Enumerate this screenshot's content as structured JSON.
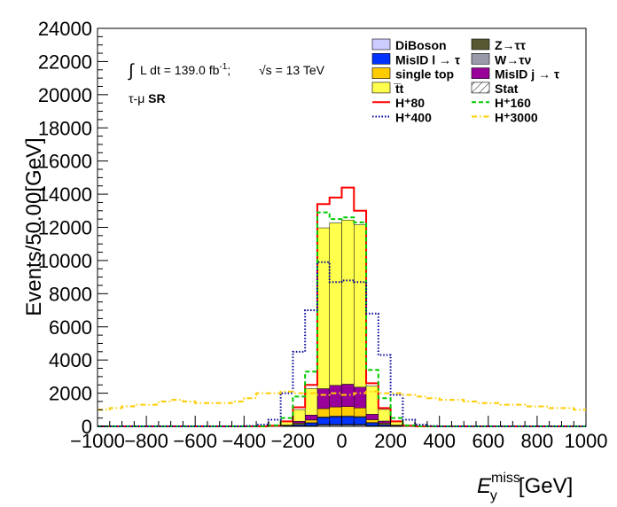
{
  "chart_data": {
    "type": "bar",
    "title": "",
    "xlabel_main": "E",
    "xlabel_sup": "miss",
    "xlabel_sub": "y",
    "xlabel_unit": "[GeV]",
    "ylabel": "Events/50.00[GeV]",
    "xlim": [
      -1000,
      1000
    ],
    "ylim": [
      0,
      24000
    ],
    "x_ticks": [
      -1000,
      -800,
      -600,
      -400,
      -200,
      0,
      200,
      400,
      600,
      800,
      1000
    ],
    "x_tick_labels": [
      "−1000",
      "−800",
      "−600",
      "−400",
      "−200",
      "0",
      "200",
      "400",
      "600",
      "800",
      "1000"
    ],
    "y_ticks": [
      0,
      2000,
      4000,
      6000,
      8000,
      10000,
      12000,
      14000,
      16000,
      18000,
      20000,
      22000,
      24000
    ],
    "y_tick_labels": [
      "0",
      "2000",
      "4000",
      "6000",
      "8000",
      "10000",
      "12000",
      "14000",
      "16000",
      "18000",
      "20000",
      "22000",
      "24000"
    ],
    "annotations": {
      "lumi_integral": "∫",
      "lumi_text": "L dt = 139.0 fb",
      "lumi_sup": "-1",
      "lumi_sep": ";",
      "sqrt_symbol": "√s",
      "energy_text": " = 13 TeV",
      "region": "τ-μ",
      "region_bold": "SR"
    },
    "bin_edges": [
      -1000,
      -950,
      -900,
      -850,
      -800,
      -750,
      -700,
      -650,
      -600,
      -550,
      -500,
      -450,
      -400,
      -350,
      -300,
      -250,
      -200,
      -150,
      -100,
      -50,
      0,
      50,
      100,
      150,
      200,
      250,
      300,
      350,
      400,
      450,
      500,
      550,
      600,
      650,
      700,
      750,
      800,
      850,
      900,
      950,
      1000
    ],
    "stack": [
      {
        "name": "DiBoson",
        "color": "#ccccff",
        "values": [
          0,
          0,
          0,
          0,
          0,
          0,
          0,
          0,
          0,
          0,
          0,
          0,
          0,
          0,
          0,
          2,
          10,
          20,
          60,
          60,
          60,
          60,
          20,
          10,
          2,
          0,
          0,
          0,
          0,
          0,
          0,
          0,
          0,
          0,
          0,
          0,
          0,
          0,
          0,
          0
        ]
      },
      {
        "name": "Z→ττ",
        "color": "#585832",
        "values": [
          0,
          0,
          0,
          0,
          0,
          0,
          0,
          0,
          0,
          0,
          0,
          0,
          0,
          0,
          0,
          2,
          20,
          30,
          60,
          60,
          60,
          60,
          30,
          20,
          2,
          0,
          0,
          0,
          0,
          0,
          0,
          0,
          0,
          0,
          0,
          0,
          0,
          0,
          0,
          0
        ]
      },
      {
        "name": "MisID l → τ",
        "color": "#0033ff",
        "values": [
          0,
          0,
          0,
          0,
          0,
          0,
          0,
          0,
          0,
          0,
          0,
          0,
          0,
          0,
          2,
          20,
          80,
          150,
          400,
          450,
          460,
          420,
          160,
          80,
          20,
          2,
          0,
          0,
          0,
          0,
          0,
          0,
          0,
          0,
          0,
          0,
          0,
          0,
          0,
          0
        ]
      },
      {
        "name": "W→τν",
        "color": "#9999aa",
        "values": [
          0,
          0,
          0,
          0,
          0,
          0,
          0,
          0,
          0,
          0,
          0,
          0,
          0,
          0,
          0,
          2,
          10,
          20,
          50,
          50,
          50,
          50,
          20,
          10,
          2,
          0,
          0,
          0,
          0,
          0,
          0,
          0,
          0,
          0,
          0,
          0,
          0,
          0,
          0,
          0
        ]
      },
      {
        "name": "single top",
        "color": "#ffcc00",
        "values": [
          0,
          0,
          0,
          0,
          0,
          0,
          0,
          0,
          0,
          0,
          0,
          0,
          0,
          0,
          2,
          20,
          70,
          160,
          500,
          550,
          560,
          520,
          170,
          70,
          20,
          2,
          0,
          0,
          0,
          0,
          0,
          0,
          0,
          0,
          0,
          0,
          0,
          0,
          0,
          0
        ]
      },
      {
        "name": "MisID j → τ",
        "color": "#990099",
        "values": [
          0,
          0,
          0,
          0,
          0,
          0,
          0,
          0,
          0,
          0,
          0,
          0,
          0,
          0,
          5,
          30,
          120,
          300,
          1200,
          1300,
          1350,
          1250,
          330,
          130,
          30,
          5,
          0,
          0,
          0,
          0,
          0,
          0,
          0,
          0,
          0,
          0,
          0,
          0,
          0,
          0
        ]
      },
      {
        "name": "t̅t",
        "color": "#ffff4d",
        "values": [
          0,
          0,
          0,
          0,
          0,
          0,
          0,
          0,
          0,
          0,
          0,
          0,
          0,
          2,
          20,
          200,
          700,
          1600,
          9700,
          9800,
          9900,
          9800,
          1700,
          700,
          200,
          20,
          2,
          0,
          0,
          0,
          0,
          0,
          0,
          0,
          0,
          0,
          0,
          0,
          0,
          0
        ]
      }
    ],
    "signals": [
      {
        "name": "H⁺80",
        "color": "#ff0000",
        "style": "solid",
        "values": [
          0,
          0,
          0,
          0,
          0,
          0,
          0,
          0,
          0,
          0,
          0,
          0,
          0,
          2,
          40,
          300,
          1150,
          2500,
          13400,
          13800,
          14400,
          13000,
          2600,
          1100,
          300,
          40,
          2,
          0,
          0,
          0,
          0,
          0,
          0,
          0,
          0,
          0,
          0,
          0,
          0,
          0
        ]
      },
      {
        "name": "H⁺160",
        "color": "#00cc00",
        "style": "dash",
        "values": [
          0,
          0,
          0,
          0,
          0,
          0,
          0,
          0,
          0,
          0,
          0,
          0,
          0,
          5,
          60,
          500,
          1800,
          3300,
          12900,
          12500,
          12600,
          12300,
          3400,
          1700,
          500,
          60,
          5,
          0,
          0,
          0,
          0,
          0,
          0,
          0,
          0,
          0,
          0,
          0,
          0,
          0
        ]
      },
      {
        "name": "H⁺400",
        "color": "#000099",
        "style": "dot",
        "values": [
          0,
          0,
          0,
          0,
          0,
          0,
          0,
          0,
          0,
          0,
          0,
          0,
          20,
          100,
          400,
          2000,
          4500,
          7000,
          9900,
          8700,
          8800,
          8700,
          6800,
          4300,
          1900,
          400,
          100,
          20,
          0,
          0,
          0,
          0,
          0,
          0,
          0,
          0,
          0,
          0,
          0,
          0
        ]
      },
      {
        "name": "H⁺3000",
        "color": "#ffcc00",
        "style": "dashdot",
        "values": [
          1000,
          1100,
          1200,
          1300,
          1300,
          1500,
          1600,
          1500,
          1400,
          1400,
          1400,
          1500,
          1700,
          2000,
          2000,
          2100,
          2000,
          2000,
          1900,
          2000,
          1900,
          2000,
          2100,
          2000,
          2000,
          1900,
          1800,
          1700,
          1600,
          1600,
          1500,
          1400,
          1400,
          1300,
          1300,
          1200,
          1200,
          1100,
          1100,
          1000
        ]
      }
    ],
    "legend": {
      "placement": "top-right",
      "items": [
        {
          "label": "DiBoson",
          "kind": "fill",
          "color": "#ccccff"
        },
        {
          "label": "Z→ττ",
          "kind": "fill",
          "color": "#585832"
        },
        {
          "label": "MisID l → τ",
          "kind": "fill",
          "color": "#0033ff"
        },
        {
          "label": "W→τν",
          "kind": "fill",
          "color": "#9999aa"
        },
        {
          "label": "single top",
          "kind": "fill",
          "color": "#ffcc00"
        },
        {
          "label": "MisID j → τ",
          "kind": "fill",
          "color": "#990099"
        },
        {
          "label": "t̅t",
          "kind": "fill",
          "color": "#ffff4d"
        },
        {
          "label": "Stat",
          "kind": "hatch",
          "color": "#000000"
        },
        {
          "label": "H⁺80",
          "kind": "line",
          "color": "#ff0000",
          "style": "solid"
        },
        {
          "label": "H⁺160",
          "kind": "line",
          "color": "#00cc00",
          "style": "dash"
        },
        {
          "label": "H⁺400",
          "kind": "line",
          "color": "#000099",
          "style": "dot"
        },
        {
          "label": "H⁺3000",
          "kind": "line",
          "color": "#ffcc00",
          "style": "dashdot"
        }
      ]
    }
  }
}
